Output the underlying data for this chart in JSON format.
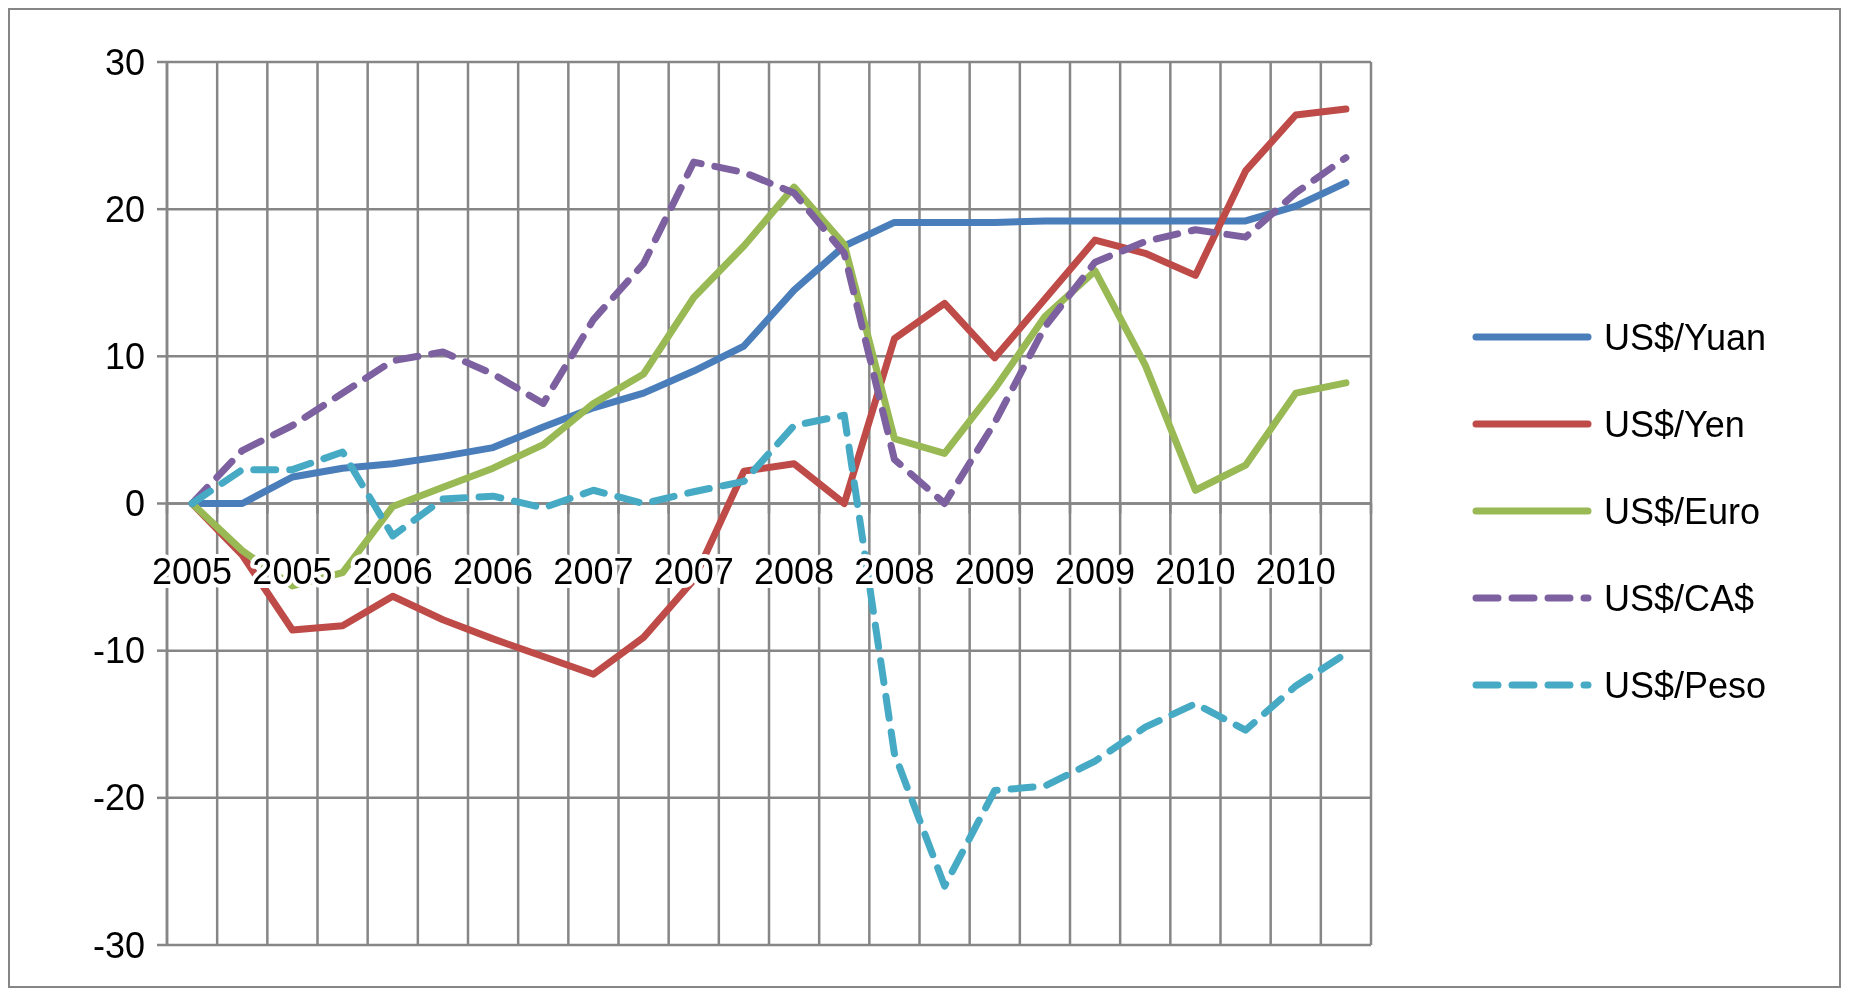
{
  "chart_data": {
    "type": "line",
    "categories": [
      "2005",
      null,
      "2005",
      null,
      "2006",
      null,
      "2006",
      null,
      "2007",
      null,
      "2007",
      null,
      "2008",
      null,
      "2008",
      null,
      "2009",
      null,
      "2009",
      null,
      "2010",
      null,
      "2010",
      null
    ],
    "series": [
      {
        "name": "US$/Yuan",
        "color": "#4a7ebb",
        "line_style": "solid",
        "values": [
          0,
          0,
          1.8,
          2.4,
          2.7,
          3.2,
          3.8,
          5.2,
          6.5,
          7.5,
          9,
          10.7,
          14.5,
          17.5,
          19.1,
          19.1,
          19.1,
          19.2,
          19.2,
          19.2,
          19.2,
          19.2,
          20.2,
          21.8
        ]
      },
      {
        "name": "US$/Yen",
        "color": "#be4b48",
        "line_style": "solid",
        "values": [
          0,
          -3.5,
          -8.6,
          -8.3,
          -6.3,
          -7.9,
          -9.2,
          -10.4,
          -11.6,
          -9.1,
          -5.2,
          2.2,
          2.7,
          0,
          11.2,
          13.6,
          9.9,
          13.9,
          17.9,
          17.0,
          15.5,
          22.6,
          26.4,
          26.8
        ]
      },
      {
        "name": "US$/Euro",
        "color": "#98b954",
        "line_style": "solid",
        "values": [
          0,
          -3.2,
          -5.6,
          -4.7,
          -0.2,
          1.1,
          2.4,
          4.0,
          6.8,
          8.8,
          14,
          17.5,
          21.5,
          17.6,
          4.4,
          3.4,
          7.8,
          12.7,
          15.8,
          9.4,
          0.9,
          2.6,
          7.5,
          8.2
        ]
      },
      {
        "name": "US$/CA$",
        "color": "#7d60a0",
        "line_style": "dashed",
        "values": [
          0,
          3.6,
          5.3,
          7.5,
          9.7,
          10.3,
          8.8,
          6.8,
          12.5,
          16.3,
          23.2,
          22.5,
          21.1,
          17,
          3,
          0,
          5.5,
          12,
          16.4,
          17.8,
          18.6,
          18.1,
          21.1,
          23.5
        ]
      },
      {
        "name": "US$/Peso",
        "color": "#46aac5",
        "line_style": "dashed",
        "values": [
          0,
          2.3,
          2.3,
          3.5,
          -2.2,
          0.3,
          0.5,
          -0.3,
          0.9,
          0,
          0.8,
          1.5,
          5.3,
          6.0,
          -17,
          -26,
          -19.5,
          -19.2,
          -17.5,
          -15.2,
          -13.6,
          -15.4,
          -12.4,
          -10.2
        ]
      }
    ],
    "ylim": [
      -30,
      30
    ],
    "yticks": [
      -30,
      -20,
      -10,
      0,
      10,
      20,
      30
    ],
    "grid": true,
    "legend": "right"
  }
}
